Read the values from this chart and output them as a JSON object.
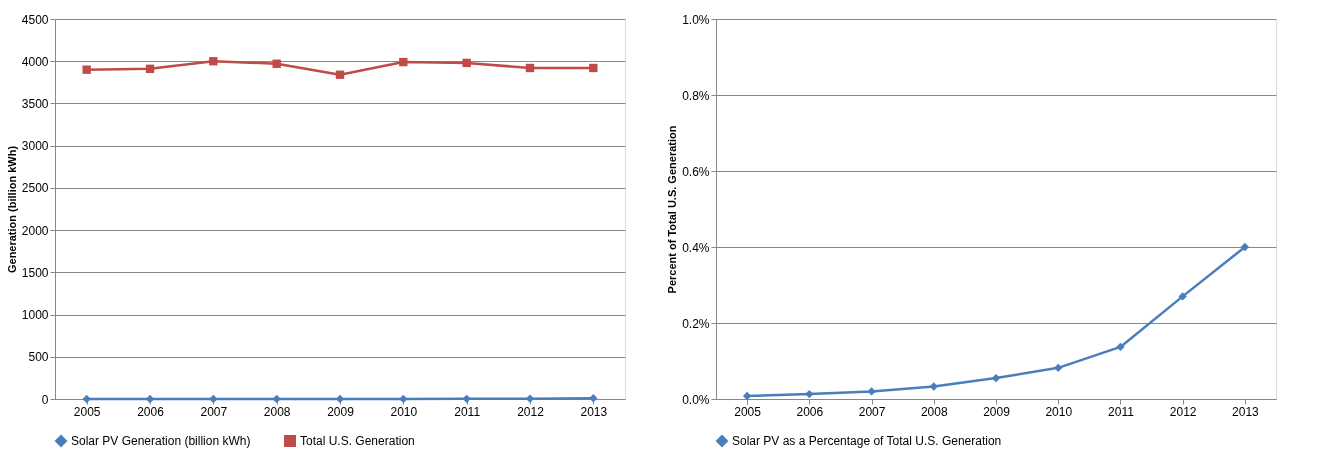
{
  "chart_data": [
    {
      "type": "line",
      "ylabel": "Generation (billion kWh)",
      "categories": [
        "2005",
        "2006",
        "2007",
        "2008",
        "2009",
        "2010",
        "2011",
        "2012",
        "2013"
      ],
      "ylim": [
        0,
        4500
      ],
      "yticks": [
        0,
        500,
        1000,
        1500,
        2000,
        2500,
        3000,
        3500,
        4000,
        4500
      ],
      "grid": "y",
      "legend": "bottom",
      "series": [
        {
          "name": "Solar PV Generation (billion kWh)",
          "color": "#4a7ebb",
          "marker": "diamond",
          "values": [
            0,
            0,
            0,
            1,
            1,
            1,
            2,
            4,
            9
          ]
        },
        {
          "name": "Total U.S. Generation",
          "color": "#be4b48",
          "marker": "square",
          "values": [
            3900,
            3910,
            4000,
            3970,
            3840,
            3990,
            3980,
            3920,
            3920
          ]
        }
      ]
    },
    {
      "type": "line",
      "ylabel": "Percent of Total U.S. Generation",
      "categories": [
        "2005",
        "2006",
        "2007",
        "2008",
        "2009",
        "2010",
        "2011",
        "2012",
        "2013"
      ],
      "ylim": [
        0,
        1.0
      ],
      "yticks": [
        {
          "value": 0,
          "label": "0.0%"
        },
        {
          "value": 0.2,
          "label": "0.2%"
        },
        {
          "value": 0.4,
          "label": "0.4%"
        },
        {
          "value": 0.6,
          "label": "0.6%"
        },
        {
          "value": 0.8,
          "label": "0.8%"
        },
        {
          "value": 1.0,
          "label": "1.0%"
        }
      ],
      "grid": "y",
      "legend": "bottom",
      "series": [
        {
          "name": "Solar PV as a Percentage of Total U.S. Generation",
          "color": "#4a7ebb",
          "marker": "diamond",
          "values": [
            0.008,
            0.013,
            0.02,
            0.033,
            0.055,
            0.082,
            0.137,
            0.27,
            0.4
          ]
        }
      ]
    }
  ]
}
